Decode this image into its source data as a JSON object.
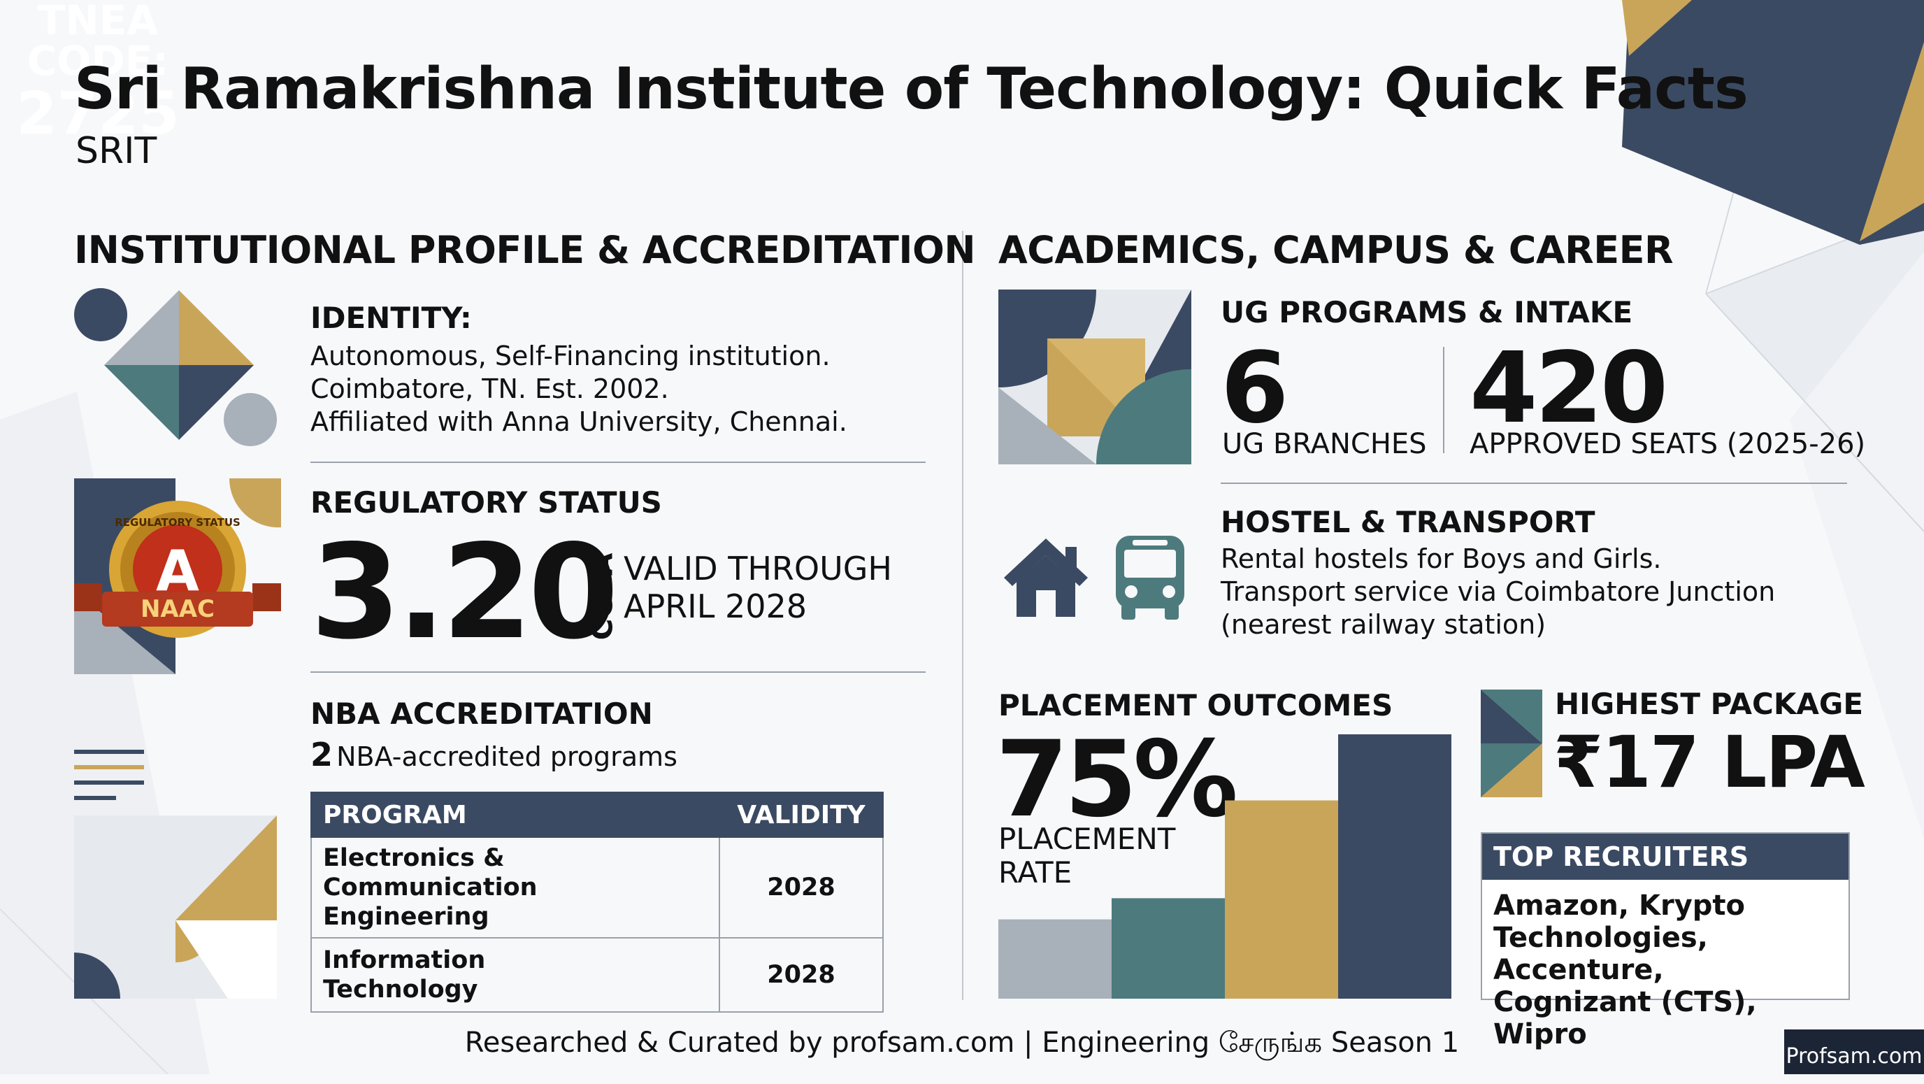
{
  "title": "Sri Ramakrishna Institute of Technology: Quick Facts",
  "subtitle": "SRIT",
  "tnea": {
    "line1": "TNEA",
    "line2": "CODE:",
    "code": "2725"
  },
  "colors": {
    "navy": "#3b4a63",
    "gold": "#c9a55a",
    "teal": "#4d7a7d",
    "gray": "#a8b0ba"
  },
  "left": {
    "heading": "INSTITUTIONAL PROFILE & ACCREDITATION",
    "identity": {
      "label": "IDENTITY:",
      "lines": [
        "Autonomous, Self-Financing institution.",
        "Coimbatore, TN. Est. 2002.",
        "Affiliated with Anna University, Chennai."
      ]
    },
    "regulatory": {
      "label": "REGULATORY STATUS",
      "cgpa_value": "3.20",
      "cgpa_label": "CGPA",
      "valid_line1": "VALID THROUGH",
      "valid_line2": "APRIL 2028",
      "badge": {
        "grade": "A",
        "ribbon": "NAAC",
        "arc_text": "REGULATORY STATUS"
      }
    },
    "nba": {
      "label": "NBA ACCREDITATION",
      "count": "2",
      "count_text": "NBA-accredited programs",
      "headers": [
        "PROGRAM",
        "VALIDITY"
      ],
      "rows": [
        {
          "program_line1": "Electronics &",
          "program_line2": "Communication Engineering",
          "validity": "2028"
        },
        {
          "program_line1": "Information",
          "program_line2": "Technology",
          "validity": "2028"
        }
      ]
    }
  },
  "right": {
    "heading": "ACADEMICS, CAMPUS & CAREER",
    "ug": {
      "label": "UG PROGRAMS & INTAKE",
      "branches_value": "6",
      "branches_label": "UG BRANCHES",
      "seats_value": "420",
      "seats_label": "APPROVED SEATS (2025-26)"
    },
    "hostel": {
      "label": "HOSTEL & TRANSPORT",
      "lines": [
        "Rental hostels for Boys and Girls.",
        "Transport service via Coimbatore Junction",
        "(nearest railway station)"
      ],
      "icons": [
        "house-icon",
        "bus-icon"
      ]
    },
    "placement": {
      "label": "PLACEMENT OUTCOMES",
      "value": "75%",
      "rate_line1": "PLACEMENT",
      "rate_line2": "RATE",
      "bar_levels": [
        0.3,
        0.38,
        0.75,
        1.0
      ]
    },
    "package": {
      "label": "HIGHEST PACKAGE",
      "value": "₹17 LPA"
    },
    "recruiters": {
      "label": "TOP RECRUITERS",
      "lines": [
        "Amazon, Krypto",
        "Technologies, Accenture,",
        "Cognizant (CTS), Wipro"
      ]
    }
  },
  "footer": "Researched & Curated by profsam.com | Engineering சேருங்க Season 1",
  "logo": "Profsam.com"
}
